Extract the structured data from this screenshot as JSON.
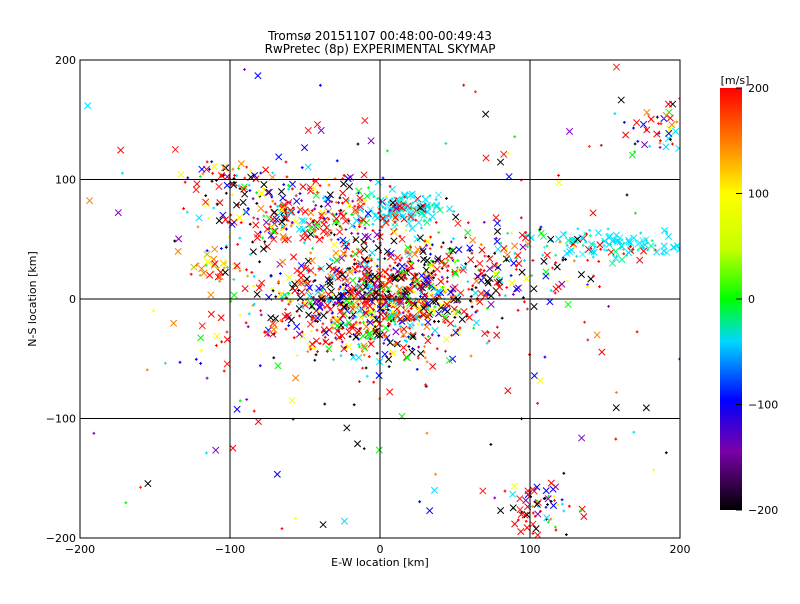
{
  "chart_data": {
    "type": "scatter",
    "title": "Tromsø 20151107 00:48:00-00:49:43",
    "subtitle": "RwPretec (8p) EXPERIMENTAL SKYMAP",
    "xlabel": "E-W location [km]",
    "ylabel": "N-S location [km]",
    "xlim": [
      -200,
      200
    ],
    "ylim": [
      -200,
      200
    ],
    "xticks": [
      "-200",
      "-100",
      "0",
      "100",
      "200"
    ],
    "yticks": [
      "-200",
      "-100",
      "0",
      "100",
      "200"
    ],
    "grid_lines": [
      -100,
      0,
      100
    ],
    "colorbar": {
      "label": "[m/s]",
      "range": [
        -200,
        200
      ],
      "ticks": [
        "200",
        "100",
        "0",
        "-100",
        "-200"
      ],
      "colormap": "rainbow (black-purple-blue-cyan-green-yellow-red)"
    },
    "markers": [
      "x (large)",
      "+ (small)"
    ],
    "clusters": [
      {
        "x": 0,
        "y": 0,
        "spread_x": 30,
        "spread_y": 22,
        "count": 900,
        "mix": "multi"
      },
      {
        "x": 15,
        "y": 75,
        "spread_x": 12,
        "spread_y": 6,
        "count": 160,
        "mix": "cyan"
      },
      {
        "x": -45,
        "y": 70,
        "spread_x": 35,
        "spread_y": 18,
        "count": 320,
        "mix": "multi"
      },
      {
        "x": 150,
        "y": 45,
        "spread_x": 30,
        "spread_y": 6,
        "count": 140,
        "mix": "cyan"
      },
      {
        "x": 75,
        "y": 25,
        "spread_x": 30,
        "spread_y": 18,
        "count": 180,
        "mix": "multi"
      },
      {
        "x": 105,
        "y": -175,
        "spread_x": 12,
        "spread_y": 12,
        "count": 70,
        "mix": "multi"
      },
      {
        "x": 185,
        "y": 140,
        "spread_x": 12,
        "spread_y": 12,
        "count": 50,
        "mix": "multi"
      },
      {
        "x": -100,
        "y": 100,
        "spread_x": 12,
        "spread_y": 8,
        "count": 50,
        "mix": "multi"
      },
      {
        "x": -110,
        "y": 25,
        "spread_x": 8,
        "spread_y": 5,
        "count": 25,
        "mix": "yellow-red"
      },
      {
        "x": -60,
        "y": -10,
        "spread_x": 25,
        "spread_y": 25,
        "count": 80,
        "mix": "multi"
      },
      {
        "x": 0,
        "y": 0,
        "spread_x": 120,
        "spread_y": 110,
        "count": 260,
        "mix": "multi"
      }
    ]
  }
}
